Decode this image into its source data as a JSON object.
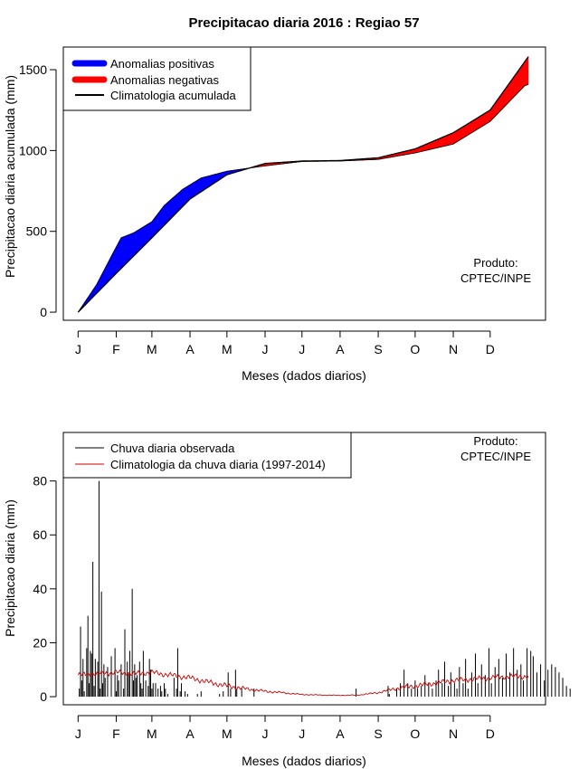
{
  "chart_data": [
    {
      "type": "area",
      "title": "Precipitacao diaria 2016 : Regiao 57",
      "xlabel": "Meses (dados diarios)",
      "ylabel": "Precipitacao diaria acumulada (mm)",
      "xtick_labels": [
        "J",
        "F",
        "M",
        "A",
        "M",
        "J",
        "J",
        "A",
        "S",
        "O",
        "N",
        "D"
      ],
      "xlim": [
        -12,
        380
      ],
      "ylim": [
        -50,
        1640
      ],
      "yticks": [
        0,
        500,
        1000,
        1500
      ],
      "climatology_label": "Climatologia acumulada",
      "climatology_points": [
        [
          0,
          0
        ],
        [
          31,
          240
        ],
        [
          60,
          460
        ],
        [
          91,
          700
        ],
        [
          121,
          850
        ],
        [
          152,
          920
        ],
        [
          182,
          935
        ],
        [
          213,
          938
        ],
        [
          244,
          955
        ],
        [
          274,
          1010
        ],
        [
          305,
          1110
        ],
        [
          335,
          1250
        ],
        [
          366,
          1580
        ]
      ],
      "observed_points": [
        [
          0,
          0
        ],
        [
          15,
          170
        ],
        [
          28,
          360
        ],
        [
          35,
          460
        ],
        [
          45,
          490
        ],
        [
          60,
          560
        ],
        [
          70,
          660
        ],
        [
          85,
          760
        ],
        [
          100,
          830
        ],
        [
          121,
          872
        ],
        [
          152,
          905
        ],
        [
          182,
          932
        ],
        [
          213,
          935
        ],
        [
          244,
          945
        ],
        [
          274,
          985
        ],
        [
          305,
          1040
        ],
        [
          335,
          1180
        ],
        [
          363,
          1400
        ],
        [
          366,
          1410
        ]
      ],
      "positive_label": "Anomalias positivas",
      "negative_label": "Anomalias negativas",
      "colors": {
        "positive": "#0000ff",
        "negative": "#ff0000",
        "climatology": "#000000"
      },
      "credit": [
        "Produto:",
        "CPTEC/INPE"
      ]
    },
    {
      "type": "bar",
      "xlabel": "Meses (dados diarios)",
      "ylabel": "Precipitacao diaria (mm)",
      "xtick_labels": [
        "J",
        "F",
        "M",
        "A",
        "M",
        "J",
        "J",
        "A",
        "S",
        "O",
        "N",
        "D"
      ],
      "xlim": [
        -12,
        380
      ],
      "ylim": [
        -3,
        98
      ],
      "yticks": [
        0,
        20,
        40,
        60,
        80
      ],
      "series": [
        {
          "name": "Chuva diaria observada",
          "color": "#000000",
          "values": [
            0,
            3,
            26,
            6,
            14,
            2,
            0,
            18,
            30,
            5,
            17,
            16,
            50,
            4,
            14,
            0,
            13,
            80,
            3,
            39,
            5,
            12,
            7,
            0,
            11,
            0,
            0,
            15,
            0,
            0,
            18,
            2,
            8,
            6,
            0,
            12,
            0,
            3,
            25,
            0,
            13,
            9,
            17,
            0,
            40,
            6,
            12,
            7,
            8,
            0,
            13,
            5,
            3,
            17,
            0,
            6,
            0,
            4,
            14,
            10,
            3,
            5,
            0,
            5,
            0,
            3,
            0,
            4,
            2,
            0,
            5,
            3,
            0,
            1,
            0,
            0,
            0,
            0,
            7,
            0,
            3,
            18,
            0,
            2,
            5,
            0,
            0,
            2,
            0,
            1,
            0,
            0,
            0,
            0,
            0,
            0,
            0,
            1,
            0,
            0,
            2,
            0,
            0,
            0,
            0,
            0,
            0,
            0,
            0,
            0,
            0,
            0,
            0,
            0,
            0,
            1,
            0,
            0,
            2,
            0,
            0,
            0,
            9,
            0,
            3,
            0,
            0,
            0,
            10,
            3,
            0,
            0,
            0,
            3,
            0,
            0,
            0,
            0,
            0,
            0,
            0,
            0,
            0,
            3,
            0,
            0,
            0,
            0,
            0,
            0,
            0,
            0,
            0,
            0,
            0,
            0,
            0,
            0,
            0,
            0,
            0,
            0,
            0,
            0,
            0,
            0,
            0,
            0,
            0,
            0,
            0,
            0,
            0,
            0,
            0,
            0,
            0,
            0,
            0,
            0,
            0,
            0,
            0,
            0,
            0,
            0,
            0,
            0,
            0,
            0,
            0,
            0,
            0,
            0,
            0,
            0,
            0,
            0,
            0,
            0,
            0,
            0,
            0,
            0,
            0,
            0,
            0,
            0,
            0,
            0,
            0,
            0,
            0,
            0,
            0,
            0,
            0,
            0,
            0,
            0,
            0,
            0,
            0,
            0,
            0,
            0,
            3,
            0,
            0,
            0,
            0,
            0,
            0,
            0,
            0,
            0,
            0,
            0,
            0,
            0,
            0,
            0,
            0,
            0,
            0,
            0,
            0,
            0,
            0,
            0,
            0,
            0,
            4,
            1,
            0,
            0,
            0,
            0,
            0,
            3,
            0,
            0,
            5,
            0,
            0,
            10,
            0,
            0,
            5,
            0,
            0,
            3,
            0,
            0,
            6,
            0,
            3,
            0,
            0,
            4,
            0,
            0,
            8,
            0,
            0,
            5,
            0,
            0,
            3,
            0,
            0,
            6,
            0,
            10,
            0,
            0,
            5,
            0,
            13,
            0,
            0,
            4,
            0,
            9,
            0,
            0,
            5,
            0,
            3,
            0,
            11,
            0,
            0,
            5,
            0,
            14,
            0,
            3,
            0,
            0,
            9,
            0,
            0,
            16,
            0,
            5,
            0,
            0,
            12,
            0,
            0,
            8,
            0,
            0,
            18,
            0,
            5,
            0,
            0,
            11,
            0,
            0,
            14,
            0,
            0,
            7,
            0,
            0,
            16,
            0,
            0,
            9,
            0,
            0,
            18,
            0,
            0,
            10,
            0,
            0,
            12,
            0,
            6,
            0,
            0,
            18,
            0,
            0,
            17,
            0,
            15,
            0,
            0,
            9,
            0,
            0,
            12,
            0,
            0,
            6,
            0,
            0,
            10,
            0,
            0,
            12,
            0,
            0,
            11,
            0,
            0,
            9,
            0,
            0,
            7,
            0,
            0,
            4,
            0,
            0,
            3
          ]
        },
        {
          "name": "Climatologia da chuva diaria (1997-2014)",
          "color": "#cc0000",
          "points": [
            [
              0,
              8
            ],
            [
              15,
              8.5
            ],
            [
              31,
              9
            ],
            [
              45,
              8.5
            ],
            [
              60,
              9
            ],
            [
              75,
              8
            ],
            [
              91,
              7
            ],
            [
              105,
              5.5
            ],
            [
              121,
              4
            ],
            [
              135,
              3
            ],
            [
              152,
              2
            ],
            [
              166,
              1.5
            ],
            [
              182,
              0.8
            ],
            [
              198,
              0.6
            ],
            [
              213,
              0.5
            ],
            [
              228,
              0.6
            ],
            [
              244,
              1.5
            ],
            [
              258,
              3
            ],
            [
              274,
              4
            ],
            [
              290,
              5
            ],
            [
              305,
              6
            ],
            [
              320,
              6.5
            ],
            [
              335,
              7
            ],
            [
              350,
              7.5
            ],
            [
              366,
              7.5
            ]
          ]
        }
      ],
      "credit": [
        "Produto:",
        "CPTEC/INPE"
      ]
    }
  ]
}
